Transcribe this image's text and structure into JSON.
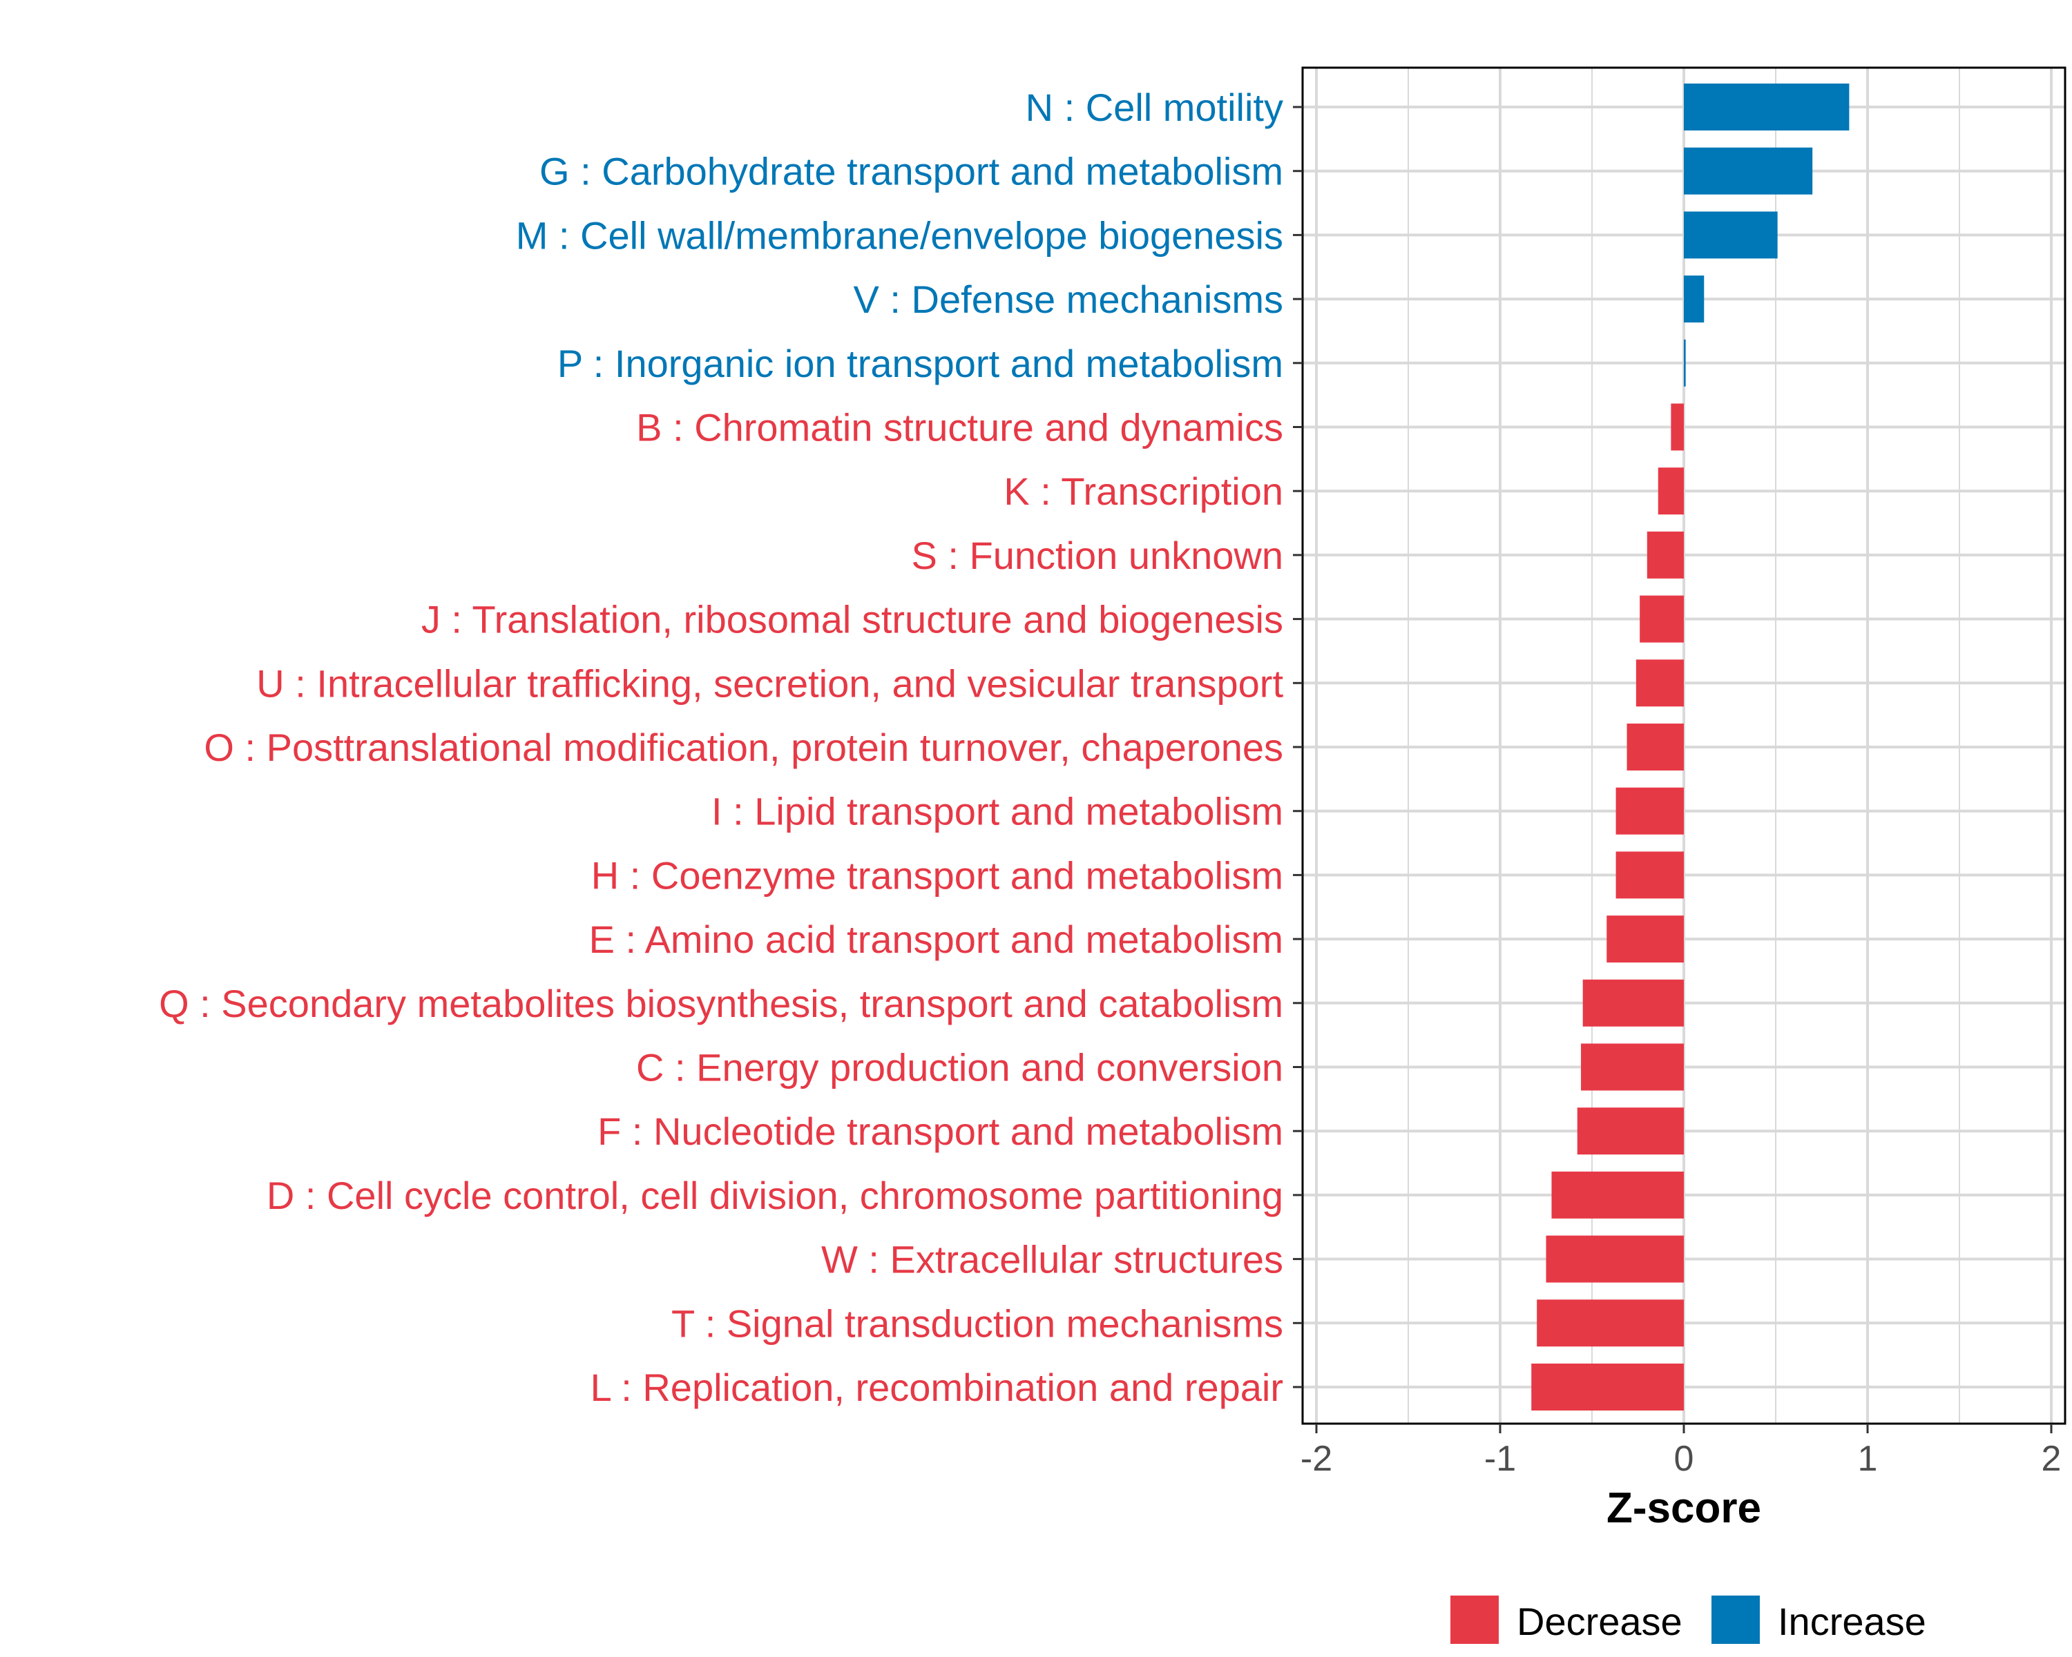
{
  "chart_data": {
    "type": "bar",
    "orientation": "horizontal",
    "xlabel": "Z-score",
    "xlim": [
      -2.05,
      2.05
    ],
    "xticks": [
      -2,
      -1,
      0,
      1,
      2
    ],
    "xtick_labels": [
      "-2",
      "-1",
      "0",
      "1",
      "2"
    ],
    "grid": true,
    "legend_position": "bottom",
    "categories": [
      "N : Cell motility",
      "G : Carbohydrate transport and metabolism",
      "M : Cell wall/membrane/envelope biogenesis",
      "V : Defense mechanisms",
      "P : Inorganic ion transport and metabolism",
      "B : Chromatin structure and dynamics",
      "K : Transcription",
      "S : Function unknown",
      "J : Translation, ribosomal structure and biogenesis",
      "U : Intracellular trafficking, secretion, and vesicular transport",
      "O : Posttranslational modification, protein turnover, chaperones",
      "I : Lipid transport and metabolism",
      "H : Coenzyme transport and metabolism",
      "E : Amino acid transport and metabolism",
      "Q : Secondary metabolites biosynthesis, transport and catabolism",
      "C : Energy production and conversion",
      "F : Nucleotide transport and metabolism",
      "D : Cell cycle control, cell division, chromosome partitioning",
      "W : Extracellular structures",
      "T : Signal transduction mechanisms",
      "L : Replication, recombination and repair"
    ],
    "values": [
      0.9,
      0.7,
      0.51,
      0.11,
      0.01,
      -0.07,
      -0.14,
      -0.2,
      -0.24,
      -0.26,
      -0.31,
      -0.37,
      -0.37,
      -0.42,
      -0.55,
      -0.56,
      -0.58,
      -0.72,
      -0.75,
      -0.8,
      -0.83
    ],
    "groups": [
      "Increase",
      "Increase",
      "Increase",
      "Increase",
      "Increase",
      "Decrease",
      "Decrease",
      "Decrease",
      "Decrease",
      "Decrease",
      "Decrease",
      "Decrease",
      "Decrease",
      "Decrease",
      "Decrease",
      "Decrease",
      "Decrease",
      "Decrease",
      "Decrease",
      "Decrease",
      "Decrease"
    ],
    "legend": [
      {
        "name": "Decrease",
        "color": "#E63946"
      },
      {
        "name": "Increase",
        "color": "#0077B6"
      }
    ]
  },
  "colors": {
    "decrease": "#E63946",
    "increase": "#0077B6",
    "grid": "#d9d9d9",
    "axis": "#000000"
  }
}
